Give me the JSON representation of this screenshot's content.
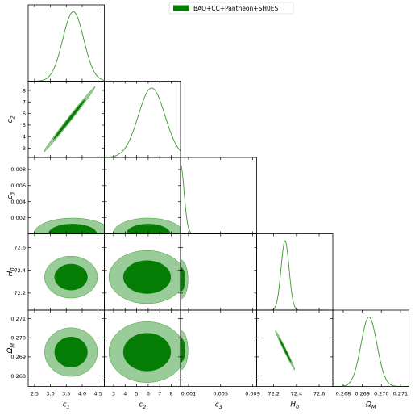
{
  "chart_data": {
    "type": "corner",
    "parameters": [
      {
        "key": "c1",
        "label_base": "c",
        "label_sub": "1",
        "range": [
          2.3,
          4.7
        ],
        "ticks": [
          2.5,
          3.0,
          3.5,
          4.0,
          4.5
        ],
        "tick_labels": [
          "2.5",
          "3.0",
          "3.5",
          "4.0",
          "4.5"
        ]
      },
      {
        "key": "c2",
        "label_base": "c",
        "label_sub": "2",
        "range": [
          2.2,
          8.8
        ],
        "ticks": [
          3,
          4,
          5,
          6,
          7,
          8
        ],
        "tick_labels": [
          "3",
          "4",
          "5",
          "6",
          "7",
          "8"
        ]
      },
      {
        "key": "c3",
        "label_base": "c",
        "label_sub": "3",
        "range": [
          0,
          0.0095
        ],
        "ticks": [
          0.001,
          0.005,
          0.009
        ],
        "tick_labels": [
          "0.001",
          "0.005",
          "0.009"
        ],
        "y_ticks": [
          0.002,
          0.004,
          0.006,
          0.008
        ],
        "y_tick_labels": [
          "0.002",
          "0.004",
          "0.006",
          "0.008"
        ]
      },
      {
        "key": "H0",
        "label_base": "H",
        "label_sub": "0",
        "range": [
          72.05,
          72.72
        ],
        "ticks": [
          72.2,
          72.4,
          72.6
        ],
        "tick_labels": [
          "72.2",
          "72.4",
          "72.6"
        ]
      },
      {
        "key": "OmegaM",
        "label_base": "Ω",
        "label_sub": "M",
        "range": [
          0.26745,
          0.27145
        ],
        "ticks": [
          0.268,
          0.269,
          0.27,
          0.271
        ],
        "tick_labels": [
          "0.268",
          "0.269",
          "0.270",
          "0.271"
        ]
      }
    ],
    "legend": {
      "entries": [
        "BAO+CC+Pantheon+SH0ES"
      ],
      "placement": "top-center"
    },
    "colors": {
      "line": "#3a9a2a",
      "inner": "#057d05",
      "outer": "#9acc9a",
      "legend": "#057d05"
    },
    "marginals": [
      {
        "type": "gaussian",
        "mean": 3.72,
        "sigma": 0.33
      },
      {
        "type": "gaussian",
        "mean": 6.3,
        "sigma": 1.15
      },
      {
        "type": "halfnormal",
        "sigma": 0.00045
      },
      {
        "type": "gaussian",
        "mean": 72.3,
        "sigma": 0.035
      },
      {
        "type": "gaussian",
        "mean": 0.26935,
        "sigma": 0.00042
      }
    ],
    "contours": [
      {
        "row": 1,
        "col": 0,
        "center": [
          3.6,
          5.5
        ],
        "sigma": [
          0.33,
          1.15
        ],
        "rho": 0.995
      },
      {
        "row": 2,
        "col": 0,
        "center": [
          3.7,
          0.0
        ],
        "sigma": [
          0.5,
          0.0008
        ],
        "rho": 0.0,
        "half": true
      },
      {
        "row": 2,
        "col": 1,
        "center": [
          6.0,
          0.0
        ],
        "sigma": [
          1.25,
          0.0008
        ],
        "rho": 0.0,
        "half": true
      },
      {
        "row": 3,
        "col": 0,
        "center": [
          3.65,
          72.34
        ],
        "sigma": [
          0.34,
          0.075
        ],
        "rho": 0.0
      },
      {
        "row": 3,
        "col": 1,
        "center": [
          5.9,
          72.34
        ],
        "sigma": [
          1.35,
          0.095
        ],
        "rho": 0.0
      },
      {
        "row": 3,
        "col": 2,
        "center": [
          0.0,
          72.32
        ],
        "sigma": [
          0.00038,
          0.07
        ],
        "rho": 0.0,
        "half_x": true
      },
      {
        "row": 4,
        "col": 0,
        "center": [
          3.65,
          0.26925
        ],
        "sigma": [
          0.34,
          0.00052
        ],
        "rho": 0.0
      },
      {
        "row": 4,
        "col": 1,
        "center": [
          5.9,
          0.26925
        ],
        "sigma": [
          1.35,
          0.00065
        ],
        "rho": 0.0
      },
      {
        "row": 4,
        "col": 2,
        "center": [
          0.0,
          0.26935
        ],
        "sigma": [
          0.00038,
          0.00042
        ],
        "rho": 0.0,
        "half_x": true
      },
      {
        "row": 4,
        "col": 3,
        "center": [
          72.3,
          0.26935
        ],
        "sigma": [
          0.035,
          0.00042
        ],
        "rho": -0.99
      }
    ]
  }
}
